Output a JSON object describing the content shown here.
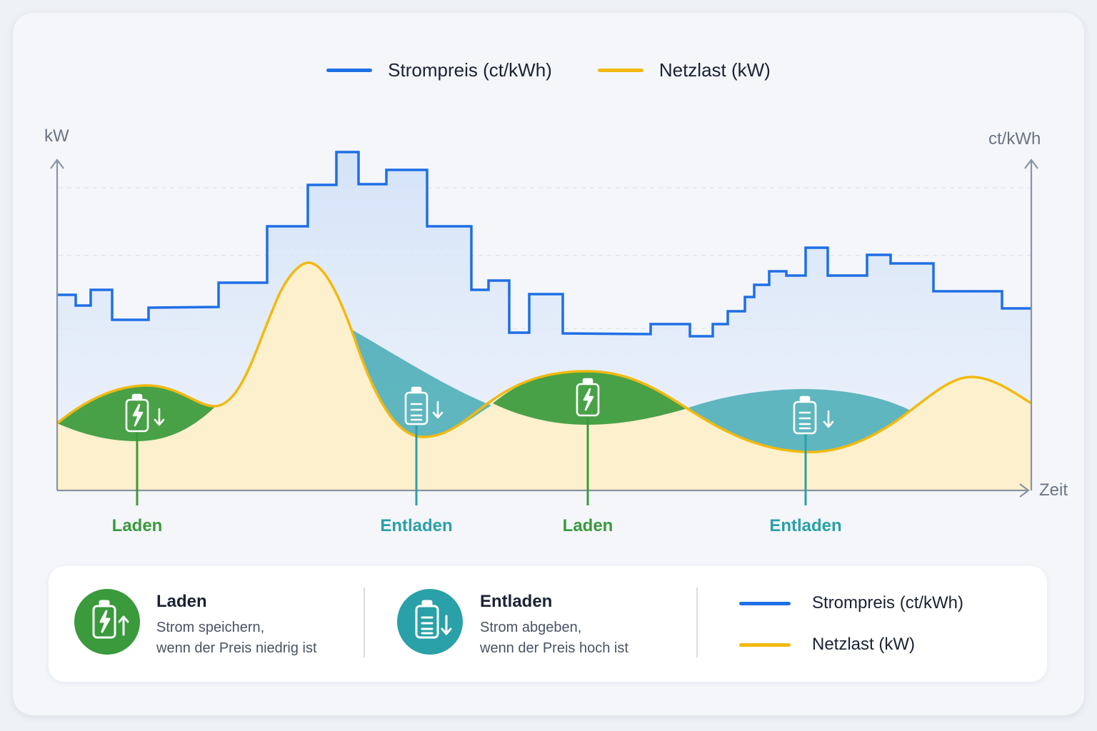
{
  "colors": {
    "price": "#1f6fe5",
    "load": "#f2b90f",
    "charge": "#3a9a3c",
    "discharge": "#2aa0a8",
    "axis": "#8a93a3",
    "load_fill": "#fdf0cc",
    "price_fill": "#dce8f8"
  },
  "legend": {
    "price": "Strompreis (ct/kWh)",
    "load": "Netzlast (kW)"
  },
  "chart_data": {
    "type": "line",
    "axes": {
      "y_left_label": "kW",
      "y_right_label": "ct/kWh",
      "x_label": "Zeit",
      "grid": "dashed horizontal"
    },
    "series": [
      {
        "name": "Strompreis (ct/kWh)",
        "style": "step",
        "color": "#1f6fe5",
        "x": [
          0,
          0.1,
          0.11,
          0.25,
          0.34,
          0.35,
          0.67,
          0.68,
          0.95,
          1.0,
          1.06,
          1.09,
          1.54,
          2.01,
          2.35,
          2.69,
          3.0,
          3.5,
          3.95,
          4.02,
          4.09,
          4.4,
          5.45,
          5.69,
          5.91,
          6.02,
          6.46,
          6.55,
          6.75,
          6.82,
          6.96,
          7.02,
          7.2,
          7.22,
          7.35,
          7.44,
          7.66,
          7.73,
          8.48,
          8.78,
          9.61,
          9.72,
          10.0,
          10.12,
          10.47,
          10.79,
          11.35,
          11.73,
          11.99
        ],
        "values": [
          0.26,
          0.26,
          0.2,
          0.2,
          0.24,
          0.24,
          0.03,
          0.03,
          0.03,
          0.03,
          0.04,
          0.06,
          0.06,
          0.32,
          0.32,
          0.57,
          0.57,
          0.74,
          0.94,
          0.94,
          0.73,
          0.73,
          0.85,
          0.85,
          0.56,
          0.56,
          0.07,
          0.07,
          0.07,
          0.07,
          0.08,
          0.08,
          0.25,
          0.25,
          0.25,
          0.25,
          0.26,
          0.26,
          0.1,
          0.1,
          0.1,
          0.1,
          0.16,
          0.16,
          0.2,
          0.26,
          0.26,
          0.3,
          0.3
        ],
        "note": "relative level"
      },
      {
        "name": "Netzlast (kW)",
        "style": "smooth",
        "color": "#f2b90f"
      }
    ]
  },
  "annotations": [
    {
      "label": "Laden",
      "type": "charge"
    },
    {
      "label": "Entladen",
      "type": "discharge"
    },
    {
      "label": "Laden",
      "type": "charge"
    },
    {
      "label": "Entladen",
      "type": "discharge"
    }
  ],
  "info_box": {
    "charge": {
      "title": "Laden",
      "desc_line1": "Strom speichern,",
      "desc_line2": "wenn der Preis niedrig ist"
    },
    "discharge": {
      "title": "Entladen",
      "desc_line1": "Strom abgeben,",
      "desc_line2": "wenn der Preis hoch ist"
    },
    "legend_price": "Strompreis (ct/kWh)",
    "legend_load": "Netzlast (kW)"
  }
}
